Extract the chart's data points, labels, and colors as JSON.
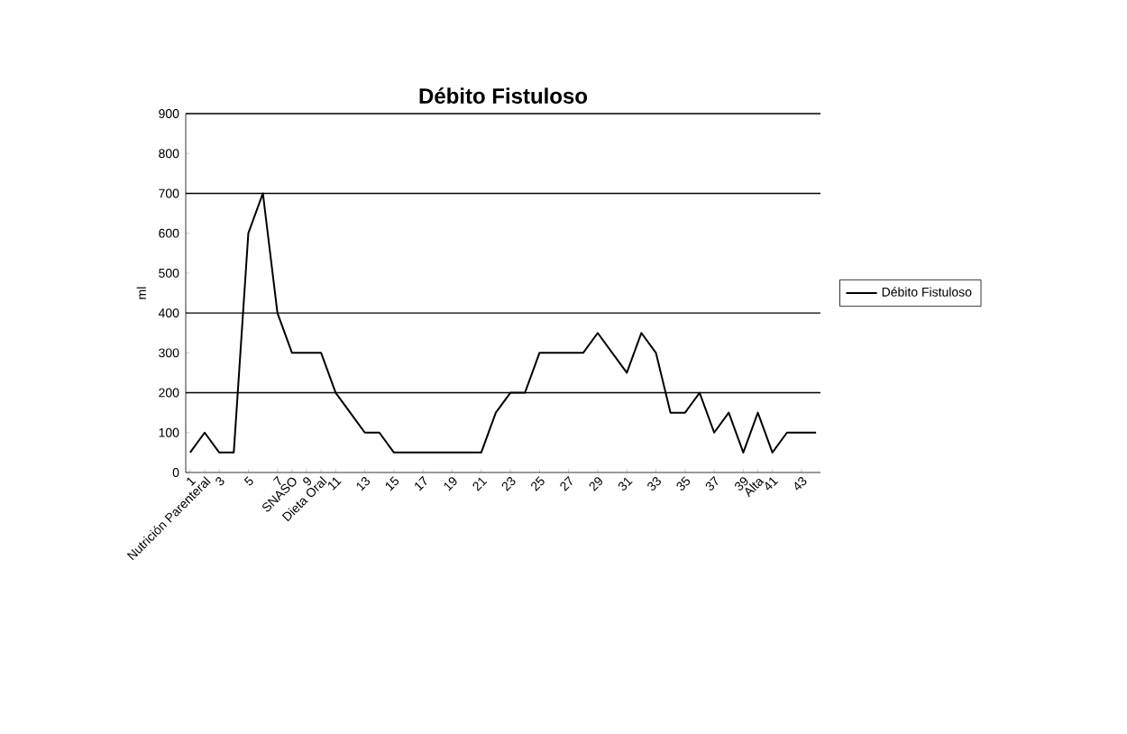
{
  "chart_data": {
    "type": "line",
    "title": "Débito Fistuloso",
    "ylabel": "ml",
    "categories": [
      "1",
      "Nutrición Parenteral",
      "3",
      null,
      "5",
      null,
      "7",
      "SNASO",
      "9",
      "Dieta Oral",
      "11",
      null,
      "13",
      null,
      "15",
      null,
      "17",
      null,
      "19",
      null,
      "21",
      null,
      "23",
      null,
      "25",
      null,
      "27",
      null,
      "29",
      null,
      "31",
      null,
      "33",
      null,
      "35",
      null,
      "37",
      null,
      "39",
      "Alta",
      "41",
      null,
      "43",
      null
    ],
    "series": [
      {
        "name": "Débito Fistuloso",
        "color": "#000000",
        "values": [
          50,
          100,
          50,
          50,
          600,
          700,
          400,
          300,
          300,
          300,
          200,
          150,
          100,
          100,
          50,
          50,
          50,
          50,
          50,
          50,
          50,
          150,
          200,
          200,
          300,
          300,
          300,
          300,
          350,
          300,
          250,
          350,
          300,
          150,
          150,
          200,
          100,
          150,
          50,
          150,
          50,
          100,
          100,
          100
        ]
      }
    ],
    "ylim": [
      0,
      900
    ],
    "yticks": [
      0,
      100,
      200,
      300,
      400,
      500,
      600,
      700,
      800,
      900
    ],
    "ref_lines": [
      {
        "axis": "y",
        "value": 200
      },
      {
        "axis": "y",
        "value": 400
      },
      {
        "axis": "y",
        "value": 700
      }
    ],
    "legend": "right",
    "marker": "none",
    "line_style": "solid"
  }
}
